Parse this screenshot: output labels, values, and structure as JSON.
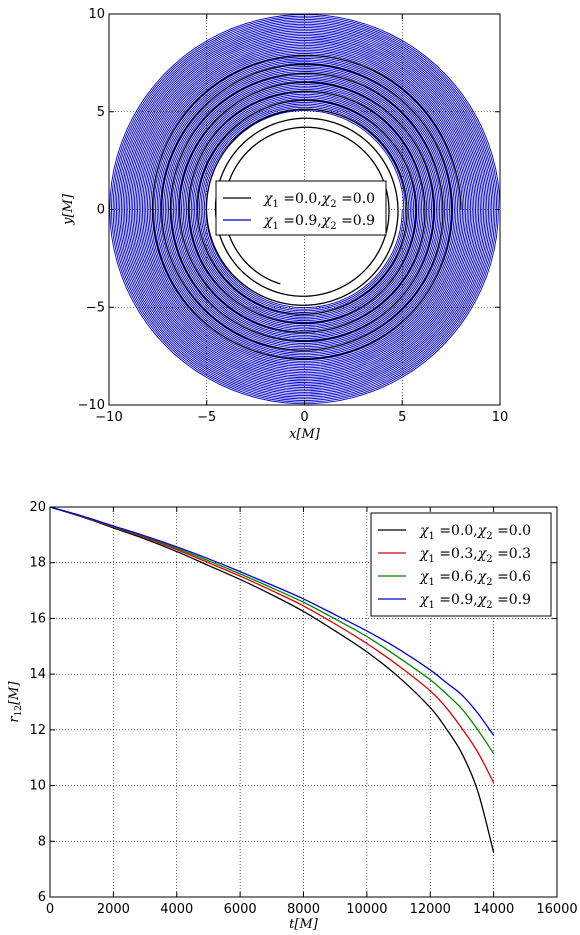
{
  "chart_data": [
    {
      "type": "line",
      "xlabel": "x[M]",
      "ylabel": "y[M]",
      "xlim": [
        -10,
        10
      ],
      "ylim": [
        -10,
        10
      ],
      "xticks": [
        -10,
        -5,
        0,
        5,
        10
      ],
      "yticks": [
        -10,
        -5,
        0,
        5,
        10
      ],
      "grid": true,
      "legend_position": "center",
      "series": [
        {
          "name": "χ1 = 0.0, χ2 = 0.0",
          "color": "#000000",
          "description_values": {
            "r_start": 8.0,
            "r_end": 4.0,
            "turns": 8,
            "end_point": [
              -1.2,
              -3.7
            ]
          }
        },
        {
          "name": "χ1 = 0.9, χ2 = 0.9",
          "color": "#0000cc",
          "description_values": {
            "r_start": 10.0,
            "r_end": 5.0,
            "turns": 60
          }
        }
      ]
    },
    {
      "type": "line",
      "xlabel": "t[M]",
      "ylabel": "r12[M]",
      "xlim": [
        0,
        16000
      ],
      "ylim": [
        6,
        20
      ],
      "xticks": [
        0,
        2000,
        4000,
        6000,
        8000,
        10000,
        12000,
        14000,
        16000
      ],
      "yticks": [
        6,
        8,
        10,
        12,
        14,
        16,
        18,
        20
      ],
      "grid": true,
      "legend_position": "top-right",
      "x": [
        0,
        1000,
        2000,
        3000,
        4000,
        5000,
        6000,
        7000,
        8000,
        9000,
        10000,
        11000,
        12000,
        12500,
        13000,
        13500,
        14000
      ],
      "series": [
        {
          "name": "χ1 = 0.0, χ2 = 0.0",
          "color": "#000000",
          "values": [
            20.0,
            19.65,
            19.25,
            18.85,
            18.4,
            17.9,
            17.4,
            16.85,
            16.25,
            15.55,
            14.8,
            13.9,
            12.8,
            12.05,
            11.15,
            9.8,
            7.6
          ]
        },
        {
          "name": "χ1 = 0.3, χ2 = 0.3",
          "color": "#dd0000",
          "values": [
            20.0,
            19.66,
            19.28,
            18.9,
            18.47,
            18.0,
            17.52,
            17.0,
            16.45,
            15.8,
            15.1,
            14.3,
            13.4,
            12.8,
            12.05,
            11.2,
            10.1
          ]
        },
        {
          "name": "χ1 = 0.6, χ2 = 0.6",
          "color": "#008800",
          "values": [
            20.0,
            19.67,
            19.3,
            18.93,
            18.52,
            18.07,
            17.6,
            17.1,
            16.58,
            15.98,
            15.35,
            14.6,
            13.8,
            13.3,
            12.75,
            12.0,
            11.15
          ]
        },
        {
          "name": "χ1 = 0.9, χ2 = 0.9",
          "color": "#0000dd",
          "values": [
            20.0,
            19.68,
            19.32,
            18.96,
            18.57,
            18.14,
            17.68,
            17.2,
            16.7,
            16.13,
            15.55,
            14.9,
            14.15,
            13.7,
            13.25,
            12.6,
            11.8
          ]
        }
      ]
    }
  ]
}
